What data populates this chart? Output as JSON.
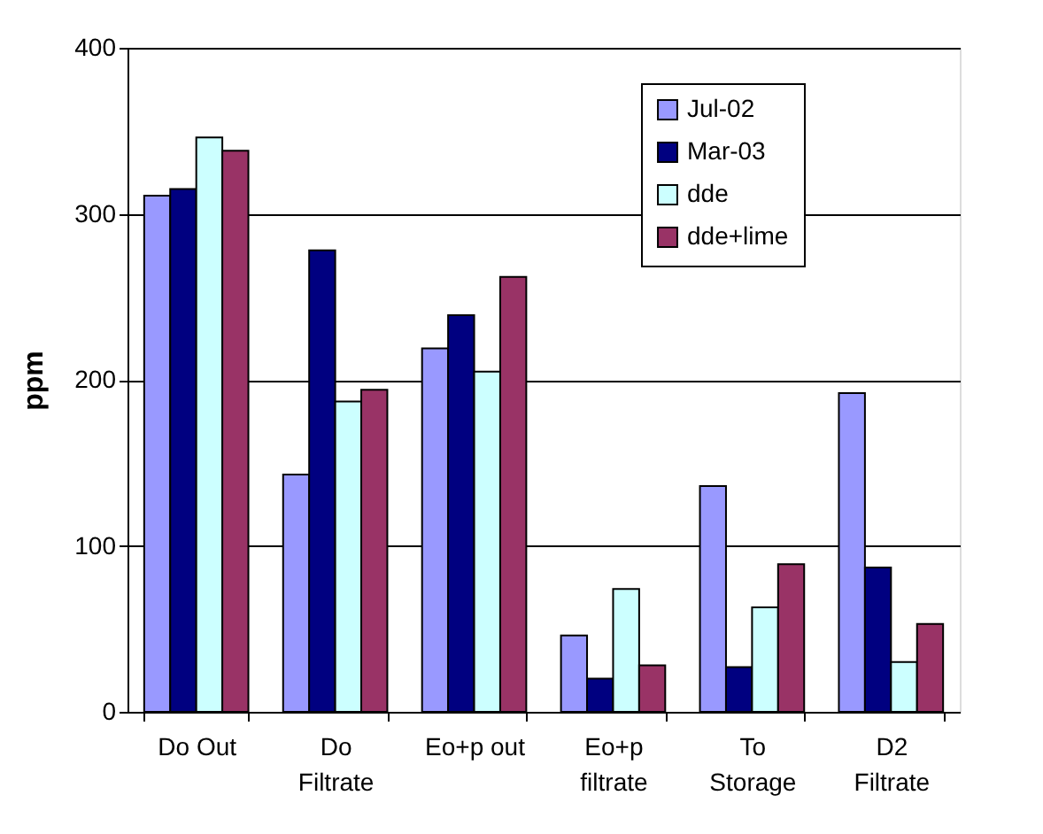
{
  "chart_data": {
    "type": "bar",
    "ylabel": "ppm",
    "categories": [
      "Do Out",
      "Do\nFiltrate",
      "Eo+p out",
      "Eo+p\nfiltrate",
      "To\nStorage",
      "D2\nFiltrate"
    ],
    "series": [
      {
        "name": "Jul-02",
        "color": "#9999ff",
        "values": [
          311,
          143,
          219,
          46,
          136,
          192
        ]
      },
      {
        "name": "Mar-03",
        "color": "#000080",
        "values": [
          315,
          278,
          239,
          20,
          27,
          87
        ]
      },
      {
        "name": "dde",
        "color": "#ccffff",
        "values": [
          346,
          187,
          205,
          74,
          63,
          30
        ]
      },
      {
        "name": "dde+lime",
        "color": "#993366",
        "values": [
          338,
          194,
          262,
          28,
          89,
          53
        ]
      }
    ],
    "ylim": [
      0,
      400
    ],
    "yticks": [
      0,
      100,
      200,
      300,
      400
    ],
    "grid": "y",
    "legend": "top right"
  }
}
